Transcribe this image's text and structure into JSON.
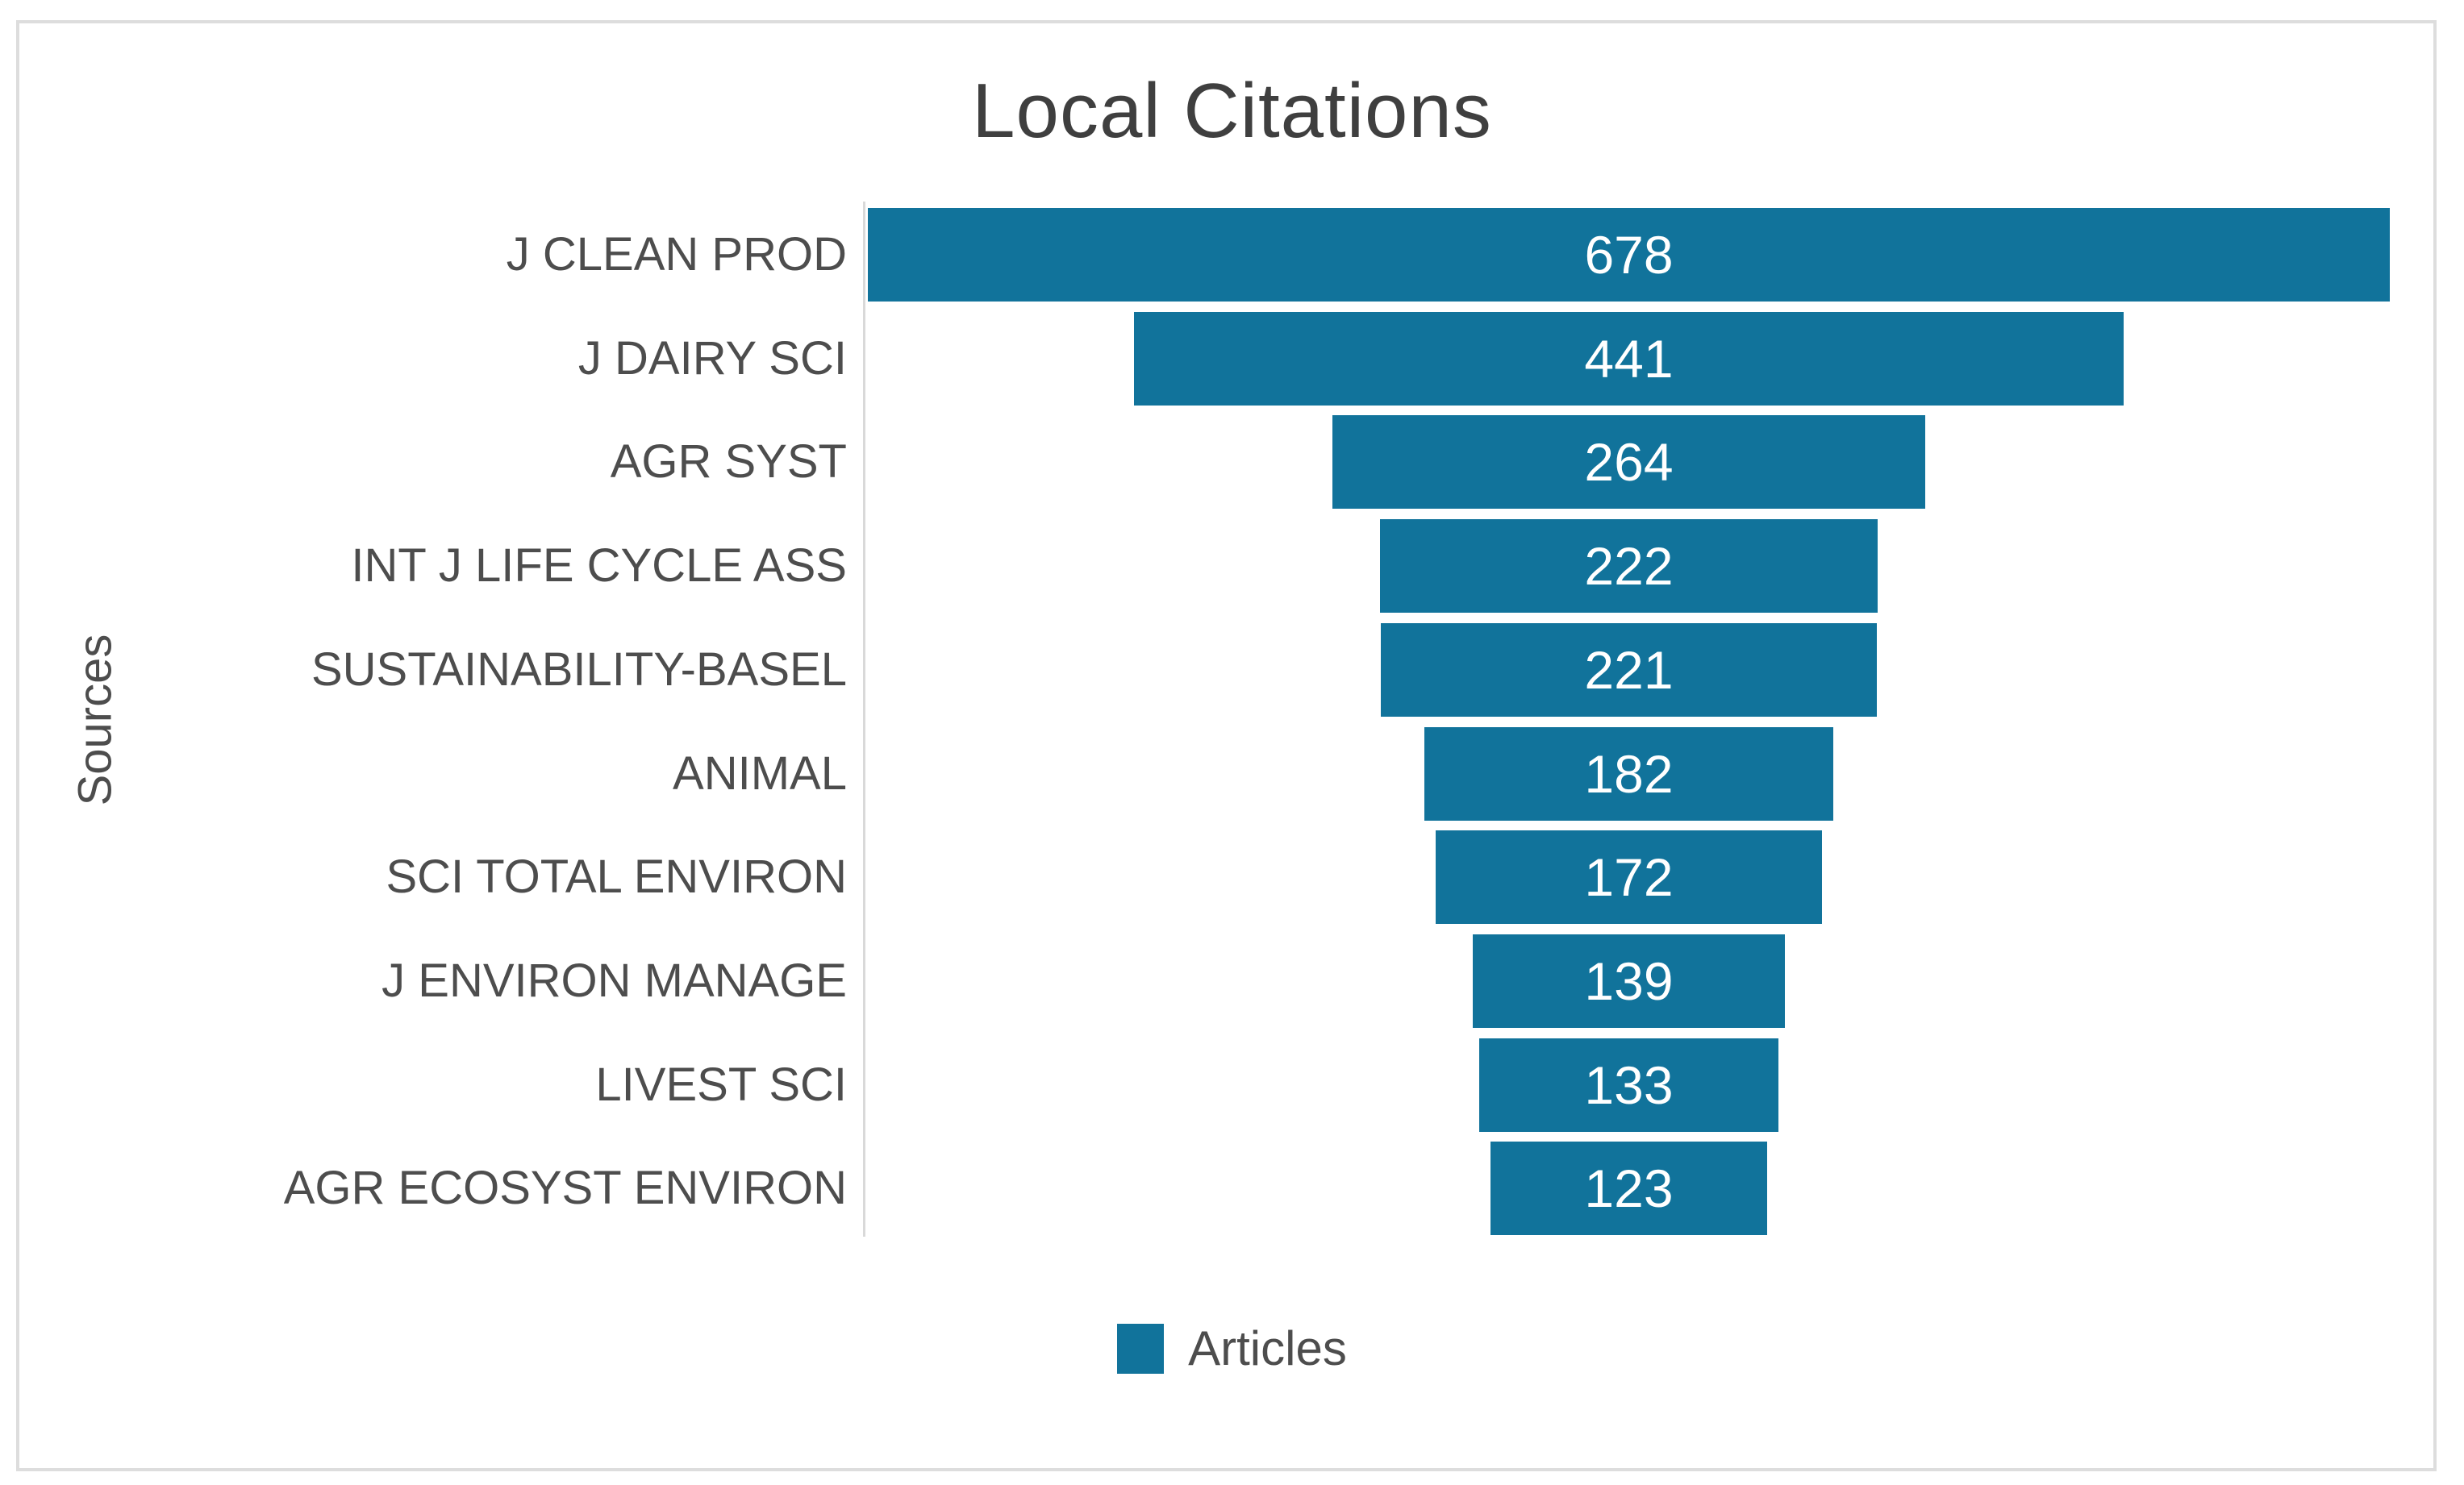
{
  "chart_data": {
    "type": "bar",
    "subtype": "horizontal-centered-funnel",
    "title": "Local Citations",
    "xlabel": "",
    "ylabel": "Sources",
    "categories": [
      "J CLEAN PROD",
      "J DAIRY SCI",
      "AGR SYST",
      "INT J LIFE CYCLE ASS",
      "SUSTAINABILITY-BASEL",
      "ANIMAL",
      "SCI TOTAL ENVIRON",
      "J ENVIRON MANAGE",
      "LIVEST SCI",
      "AGR ECOSYST ENVIRON"
    ],
    "series": [
      {
        "name": "Articles",
        "values": [
          678,
          441,
          264,
          222,
          221,
          182,
          172,
          139,
          133,
          123
        ]
      }
    ],
    "value_labels_shown": true,
    "xlim": [
      0,
      678
    ],
    "grid": false,
    "legend_position": "bottom-center"
  },
  "legend": {
    "label": "Articles"
  },
  "colors": {
    "bar": "#11739b",
    "title_text": "#3f3f3f",
    "label_text": "#4d4d4d",
    "value_text": "#ffffff",
    "axis_line": "#d9d9d9",
    "frame_border": "#dddddd"
  }
}
